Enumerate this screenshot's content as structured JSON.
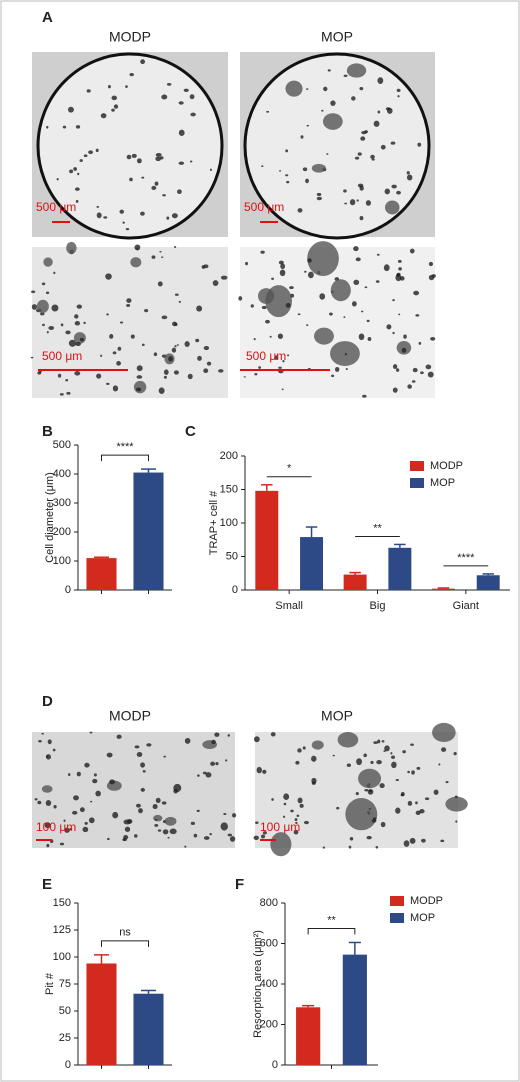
{
  "panels": {
    "a": {
      "letter": "A",
      "labels": [
        "MODP",
        "MOP"
      ],
      "scale_bars": [
        "500 μm",
        "500 μm",
        "500 μm",
        "500 μm"
      ]
    },
    "b": {
      "letter": "B"
    },
    "c": {
      "letter": "C"
    },
    "d": {
      "letter": "D",
      "labels": [
        "MODP",
        "MOP"
      ],
      "scale_bars": [
        "100 μm",
        "100 μm"
      ]
    },
    "e": {
      "letter": "E"
    },
    "f": {
      "letter": "F"
    }
  },
  "chart_data": [
    {
      "type": "bar",
      "ylabel": "Cell diameter (μm)",
      "categories": [
        null,
        null
      ],
      "values": [
        110,
        405
      ],
      "errors": [
        3,
        12
      ],
      "colors": [
        "#d22a1e",
        "#2d4a86"
      ],
      "ylim": [
        0,
        500
      ],
      "yticks": [
        0,
        100,
        200,
        300,
        400,
        500
      ],
      "annotations": [
        "****"
      ]
    },
    {
      "type": "bar",
      "ylabel": "TRAP+ cell #",
      "categories": [
        "Small",
        "Big",
        "Giant"
      ],
      "series": [
        {
          "name": "MODP",
          "color": "#d22a1e",
          "values": [
            148,
            23,
            2
          ],
          "errors": [
            9,
            3,
            1
          ]
        },
        {
          "name": "MOP",
          "color": "#2d4a86",
          "values": [
            79,
            63,
            22
          ],
          "errors": [
            15,
            5,
            2
          ]
        }
      ],
      "ylim": [
        0,
        200
      ],
      "yticks": [
        0,
        50,
        100,
        150,
        200
      ],
      "legend": "upper right",
      "annotations": [
        "*",
        "**",
        "****"
      ]
    },
    {
      "type": "bar",
      "ylabel": "Pit #",
      "categories": [
        null,
        null
      ],
      "values": [
        94,
        66
      ],
      "errors": [
        8,
        3
      ],
      "colors": [
        "#d22a1e",
        "#2d4a86"
      ],
      "ylim": [
        0,
        150
      ],
      "yticks": [
        0,
        25,
        50,
        75,
        100,
        125,
        150
      ],
      "annotations": [
        "ns"
      ]
    },
    {
      "type": "bar",
      "ylabel": "Resorption area (μm²)",
      "categories": [
        null
      ],
      "series": [
        {
          "name": "MODP",
          "color": "#d22a1e",
          "values": [
            285
          ],
          "errors": [
            8
          ]
        },
        {
          "name": "MOP",
          "color": "#2d4a86",
          "values": [
            545
          ],
          "errors": [
            60
          ]
        }
      ],
      "ylim": [
        0,
        800
      ],
      "yticks": [
        0,
        200,
        400,
        600,
        800
      ],
      "legend": "upper right",
      "annotations": [
        "**"
      ]
    }
  ]
}
